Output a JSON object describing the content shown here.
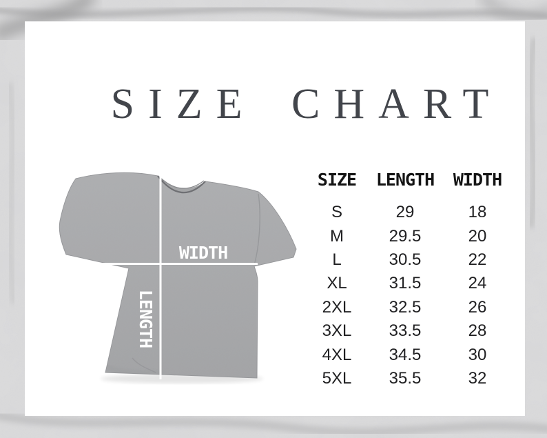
{
  "page": {
    "title": "SIZE CHART"
  },
  "shirt": {
    "width_label": "WIDTH",
    "length_label": "LENGTH"
  },
  "table": {
    "headers": [
      "SIZE",
      "LENGTH",
      "WIDTH"
    ],
    "rows": [
      {
        "size": "S",
        "length": "29",
        "width": "18"
      },
      {
        "size": "M",
        "length": "29.5",
        "width": "20"
      },
      {
        "size": "L",
        "length": "30.5",
        "width": "22"
      },
      {
        "size": "XL",
        "length": "31.5",
        "width": "24"
      },
      {
        "size": "2XL",
        "length": "32.5",
        "width": "26"
      },
      {
        "size": "3XL",
        "length": "33.5",
        "width": "28"
      },
      {
        "size": "4XL",
        "length": "34.5",
        "width": "30"
      },
      {
        "size": "5XL",
        "length": "35.5",
        "width": "32"
      }
    ]
  },
  "chart_data": {
    "type": "table",
    "title": "SIZE CHART",
    "columns": [
      "SIZE",
      "LENGTH",
      "WIDTH"
    ],
    "rows": [
      [
        "S",
        29,
        18
      ],
      [
        "M",
        29.5,
        20
      ],
      [
        "L",
        30.5,
        22
      ],
      [
        "XL",
        31.5,
        24
      ],
      [
        "2XL",
        32.5,
        26
      ],
      [
        "3XL",
        33.5,
        28
      ],
      [
        "4XL",
        34.5,
        30
      ],
      [
        "5XL",
        35.5,
        32
      ]
    ],
    "units": "inches (implied, not shown)",
    "legend_position": "none",
    "grid": false
  },
  "colors": {
    "card_bg": "#ffffff",
    "marble_base": "#d8d9da",
    "title_color": "#42454b",
    "table_text": "#1f1f21",
    "shirt_gray": "#a9aaac",
    "measure_line": "#ffffff"
  }
}
